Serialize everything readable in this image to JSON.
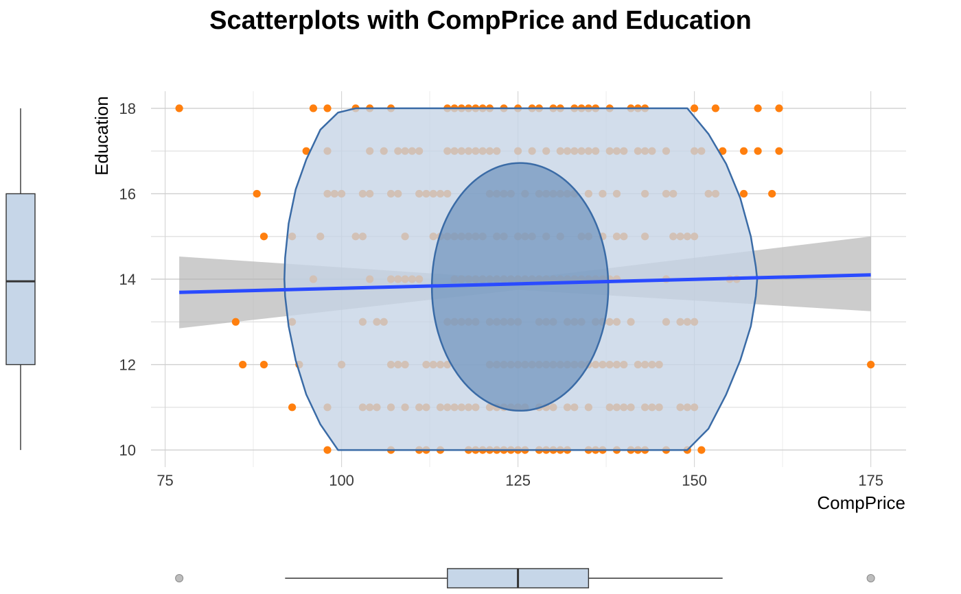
{
  "chart_data": {
    "type": "scatter",
    "title": "Scatterplots with CompPrice and Education",
    "xlabel": "CompPrice",
    "ylabel": "Education",
    "xlim": [
      73,
      180
    ],
    "ylim": [
      9.6,
      18.4
    ],
    "x_ticks": [
      75,
      100,
      125,
      150,
      175
    ],
    "y_ticks": [
      10,
      12,
      14,
      16,
      18
    ],
    "grid": true,
    "colors": {
      "points": "#ff7f0e",
      "trend": "#2a4bff",
      "confidence_band": "#b4b4b4",
      "outer_hull_fill": "#c5d4e6",
      "outer_hull_stroke": "#3a6ba6",
      "inner_ellipse_fill": "#6f93bd",
      "boxplot_fill": "#c6d6e8"
    },
    "trend_line": {
      "x": [
        77,
        175
      ],
      "y": [
        13.69,
        14.1
      ]
    },
    "confidence_band": {
      "x": [
        77,
        125,
        175
      ],
      "lower": [
        12.85,
        13.75,
        13.25
      ],
      "upper": [
        14.53,
        14.0,
        15.0
      ]
    },
    "outer_hull": {
      "x": [
        102,
        149,
        152,
        154.5,
        156.5,
        158,
        158.7,
        158.9,
        158.7,
        158,
        156.5,
        154.5,
        152,
        149,
        99.5,
        97,
        95,
        93.5,
        92.5,
        92,
        91.9,
        92,
        92.5,
        93.5,
        95,
        97,
        99.5
      ],
      "y": [
        18,
        18,
        17.4,
        16.7,
        15.9,
        15,
        14.3,
        14,
        13.6,
        12.9,
        12.1,
        11.3,
        10.5,
        10,
        10,
        10.6,
        11.3,
        12.1,
        12.9,
        13.6,
        14,
        14.5,
        15.3,
        16.1,
        16.8,
        17.5,
        17.9
      ]
    },
    "inner_ellipse": {
      "cx": 125.3,
      "cy": 13.82,
      "rx": 12.5,
      "ry": 2.9
    },
    "series": [
      {
        "x": [
          77,
          96,
          98,
          102,
          104,
          107,
          115,
          116,
          117,
          118,
          119,
          120,
          121,
          123,
          125,
          127,
          128,
          130,
          131,
          133,
          134,
          135,
          136,
          138,
          141,
          142,
          143,
          150,
          153,
          159,
          162,
          95,
          98,
          104,
          106,
          108,
          109,
          110,
          111,
          115,
          116,
          117,
          118,
          119,
          120,
          121,
          122,
          125,
          127,
          129,
          131,
          132,
          133,
          134,
          135,
          136,
          138,
          139,
          140,
          142,
          143,
          144,
          146,
          150,
          151,
          154,
          157,
          159,
          162,
          88,
          98,
          99,
          100,
          103,
          104,
          107,
          108,
          111,
          112,
          113,
          114,
          115,
          121,
          122,
          123,
          124,
          126,
          128,
          129,
          130,
          131,
          132,
          133,
          135,
          137,
          139,
          143,
          146,
          147,
          152,
          153,
          157,
          161,
          89,
          93,
          97,
          102,
          103,
          109,
          113,
          114,
          115,
          116,
          117,
          118,
          119,
          120,
          122,
          123,
          125,
          126,
          127,
          129,
          131,
          134,
          135,
          137,
          139,
          140,
          143,
          147,
          148,
          149,
          150,
          96,
          104,
          107,
          108,
          109,
          110,
          111,
          116,
          117,
          118,
          119,
          120,
          121,
          122,
          123,
          124,
          125,
          126,
          127,
          128,
          129,
          130,
          131,
          132,
          133,
          134,
          135,
          136,
          137,
          138,
          139,
          146,
          155,
          156,
          85,
          93,
          103,
          105,
          106,
          115,
          116,
          117,
          118,
          119,
          121,
          122,
          123,
          124,
          125,
          128,
          129,
          130,
          132,
          133,
          134,
          136,
          137,
          138,
          139,
          141,
          146,
          148,
          149,
          150,
          86,
          89,
          94,
          100,
          107,
          108,
          109,
          112,
          113,
          114,
          115,
          121,
          122,
          123,
          124,
          125,
          126,
          127,
          128,
          129,
          130,
          131,
          132,
          133,
          134,
          135,
          136,
          137,
          138,
          139,
          140,
          142,
          143,
          144,
          145,
          175,
          93,
          98,
          103,
          104,
          105,
          107,
          109,
          111,
          112,
          114,
          115,
          116,
          117,
          118,
          119,
          121,
          122,
          123,
          124,
          125,
          126,
          128,
          129,
          130,
          132,
          133,
          135,
          138,
          139,
          140,
          141,
          143,
          144,
          145,
          148,
          149,
          150,
          98,
          107,
          111,
          112,
          114,
          118,
          119,
          120,
          121,
          122,
          123,
          124,
          125,
          126,
          128,
          129,
          130,
          131,
          132,
          135,
          136,
          137,
          139,
          141,
          142,
          143,
          146,
          149,
          151
        ],
        "y": [
          18,
          18,
          18,
          18,
          18,
          18,
          18,
          18,
          18,
          18,
          18,
          18,
          18,
          18,
          18,
          18,
          18,
          18,
          18,
          18,
          18,
          18,
          18,
          18,
          18,
          18,
          18,
          18,
          18,
          18,
          18,
          17,
          17,
          17,
          17,
          17,
          17,
          17,
          17,
          17,
          17,
          17,
          17,
          17,
          17,
          17,
          17,
          17,
          17,
          17,
          17,
          17,
          17,
          17,
          17,
          17,
          17,
          17,
          17,
          17,
          17,
          17,
          17,
          17,
          17,
          17,
          17,
          17,
          17,
          16,
          16,
          16,
          16,
          16,
          16,
          16,
          16,
          16,
          16,
          16,
          16,
          16,
          16,
          16,
          16,
          16,
          16,
          16,
          16,
          16,
          16,
          16,
          16,
          16,
          16,
          16,
          16,
          16,
          16,
          16,
          16,
          16,
          16,
          15,
          15,
          15,
          15,
          15,
          15,
          15,
          15,
          15,
          15,
          15,
          15,
          15,
          15,
          15,
          15,
          15,
          15,
          15,
          15,
          15,
          15,
          15,
          15,
          15,
          15,
          15,
          15,
          15,
          15,
          15,
          14,
          14,
          14,
          14,
          14,
          14,
          14,
          14,
          14,
          14,
          14,
          14,
          14,
          14,
          14,
          14,
          14,
          14,
          14,
          14,
          14,
          14,
          14,
          14,
          14,
          14,
          14,
          14,
          14,
          14,
          14,
          14,
          14,
          14,
          13,
          13,
          13,
          13,
          13,
          13,
          13,
          13,
          13,
          13,
          13,
          13,
          13,
          13,
          13,
          13,
          13,
          13,
          13,
          13,
          13,
          13,
          13,
          13,
          13,
          13,
          13,
          13,
          13,
          13,
          12,
          12,
          12,
          12,
          12,
          12,
          12,
          12,
          12,
          12,
          12,
          12,
          12,
          12,
          12,
          12,
          12,
          12,
          12,
          12,
          12,
          12,
          12,
          12,
          12,
          12,
          12,
          12,
          12,
          12,
          12,
          12,
          12,
          12,
          12,
          12,
          11,
          11,
          11,
          11,
          11,
          11,
          11,
          11,
          11,
          11,
          11,
          11,
          11,
          11,
          11,
          11,
          11,
          11,
          11,
          11,
          11,
          11,
          11,
          11,
          11,
          11,
          11,
          11,
          11,
          11,
          11,
          11,
          11,
          11,
          11,
          11,
          11,
          10,
          10,
          10,
          10,
          10,
          10,
          10,
          10,
          10,
          10,
          10,
          10,
          10,
          10,
          10,
          10,
          10,
          10,
          10,
          10,
          10,
          10,
          10,
          10,
          10,
          10,
          10,
          10,
          10
        ]
      }
    ],
    "marginal_boxplot_y": {
      "whisker_low": 10,
      "q1": 12,
      "median": 13.95,
      "q3": 16,
      "whisker_high": 18
    },
    "marginal_boxplot_x": {
      "whisker_low": 92,
      "q1": 115,
      "median": 125,
      "q3": 135,
      "whisker_high": 154,
      "outliers": [
        77,
        175
      ]
    }
  }
}
